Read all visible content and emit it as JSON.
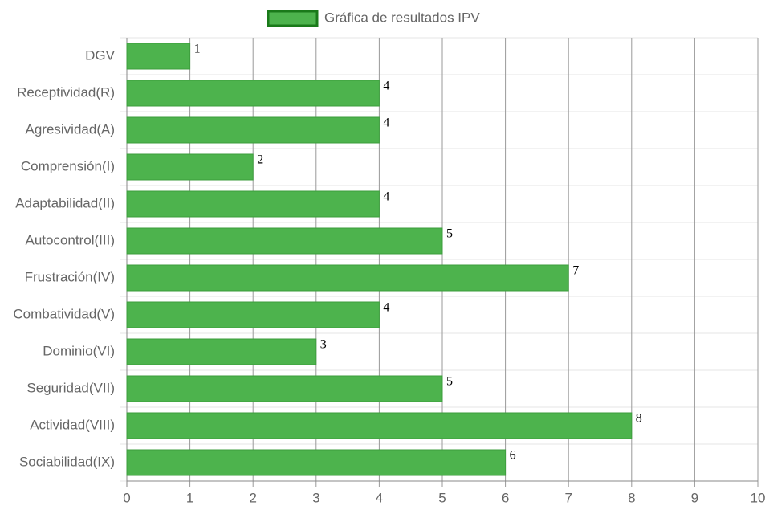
{
  "chart_data": {
    "type": "bar",
    "orientation": "horizontal",
    "categories": [
      "DGV",
      "Receptividad(R)",
      "Agresividad(A)",
      "Comprensión(I)",
      "Adaptabilidad(II)",
      "Autocontrol(III)",
      "Frustración(IV)",
      "Combatividad(V)",
      "Dominio(VI)",
      "Seguridad(VII)",
      "Actividad(VIII)",
      "Sociabilidad(IX)"
    ],
    "series": [
      {
        "name": "Gráfica de resultados IPV",
        "color": "#4db34d",
        "border_color": "#3c9e3c",
        "values": [
          1,
          4,
          4,
          2,
          4,
          5,
          7,
          4,
          3,
          5,
          8,
          6
        ]
      }
    ],
    "xlim": [
      0,
      10
    ],
    "xticks": [
      0,
      1,
      2,
      3,
      4,
      5,
      6,
      7,
      8,
      9,
      10
    ],
    "grid": true,
    "legend": "top"
  }
}
